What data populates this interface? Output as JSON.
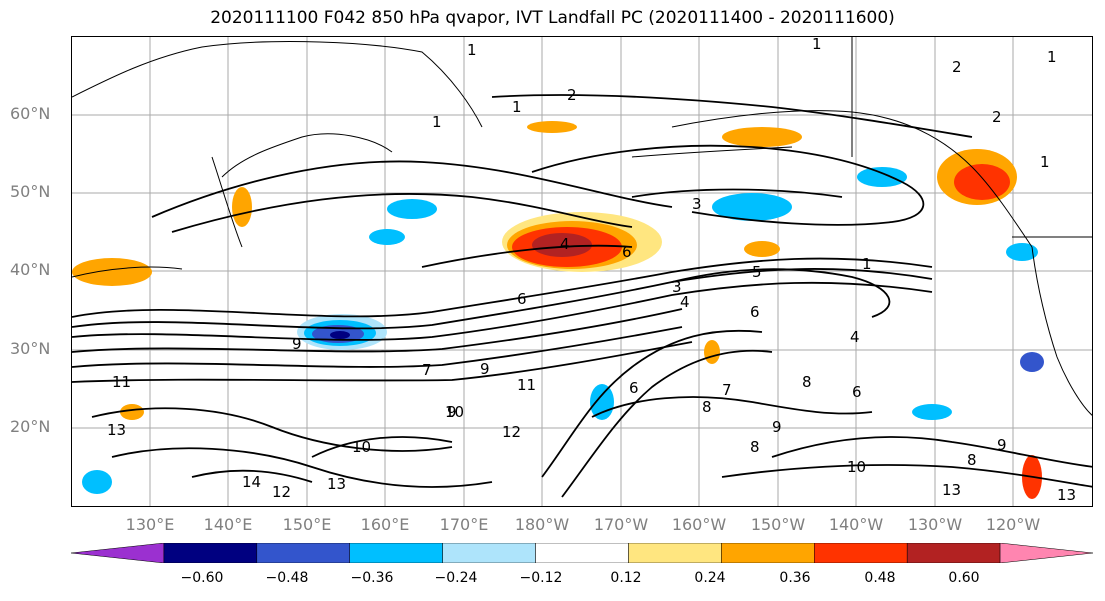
{
  "title": "2020111100 F042 850 hPa qvapor, IVT Landfall PC (2020111400 - 2020111600)",
  "lat_labels": [
    "60°N",
    "50°N",
    "40°N",
    "30°N",
    "20°N"
  ],
  "lon_labels": [
    "130°E",
    "140°E",
    "150°E",
    "160°E",
    "170°E",
    "180°W",
    "170°W",
    "160°W",
    "150°W",
    "140°W",
    "130°W",
    "120°W"
  ],
  "colorbar": {
    "ticks": [
      "−0.60",
      "−0.48",
      "−0.36",
      "−0.24",
      "−0.12",
      "0.12",
      "0.24",
      "0.36",
      "0.48",
      "0.60"
    ],
    "colors": [
      "#9b30d0",
      "#000080",
      "#3355cc",
      "#00bfff",
      "#aee4fb",
      "#ffffff",
      "#ffe680",
      "#ffa500",
      "#ff3300",
      "#b22222",
      "#ff85b0"
    ]
  },
  "contour_labels": [
    "1",
    "1",
    "1",
    "1",
    "1",
    "1",
    "1",
    "2",
    "2",
    "2",
    "3",
    "3",
    "4",
    "4",
    "4",
    "5",
    "6",
    "6",
    "6",
    "6",
    "6",
    "7",
    "7",
    "8",
    "8",
    "8",
    "8",
    "9",
    "9",
    "9",
    "9",
    "9",
    "10",
    "10",
    "10",
    "11",
    "11",
    "12",
    "12",
    "13",
    "13",
    "13",
    "13",
    "14"
  ]
}
